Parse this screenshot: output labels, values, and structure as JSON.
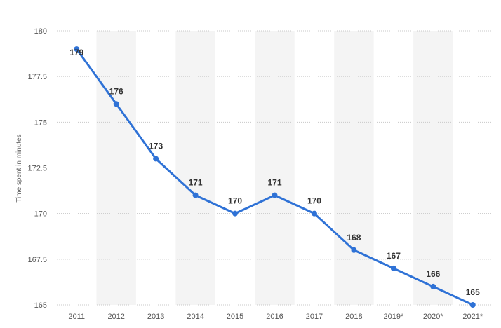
{
  "chart_data": {
    "type": "line",
    "title": "",
    "xlabel": "",
    "ylabel": "Time spent in minutes",
    "categories": [
      "2011",
      "2012",
      "2013",
      "2014",
      "2015",
      "2016",
      "2017",
      "2018",
      "2019*",
      "2020*",
      "2021*"
    ],
    "values": [
      179,
      176,
      173,
      171,
      170,
      171,
      170,
      168,
      167,
      166,
      165
    ],
    "data_labels": [
      "179",
      "176",
      "173",
      "171",
      "170",
      "171",
      "170",
      "168",
      "167",
      "166",
      "165"
    ],
    "y_ticks": [
      165,
      167.5,
      170,
      172.5,
      175,
      177.5,
      180
    ],
    "y_tick_labels": [
      "165",
      "167.5",
      "170",
      "172.5",
      "175",
      "177.5",
      "180"
    ],
    "ylim": [
      165,
      180
    ],
    "grid": true,
    "legend": "none",
    "colors": {
      "line": "#2f72d6",
      "band": "#f4f4f4",
      "grid": "#c8c8c8",
      "tick_text": "#555555",
      "label_text": "#333333"
    }
  }
}
